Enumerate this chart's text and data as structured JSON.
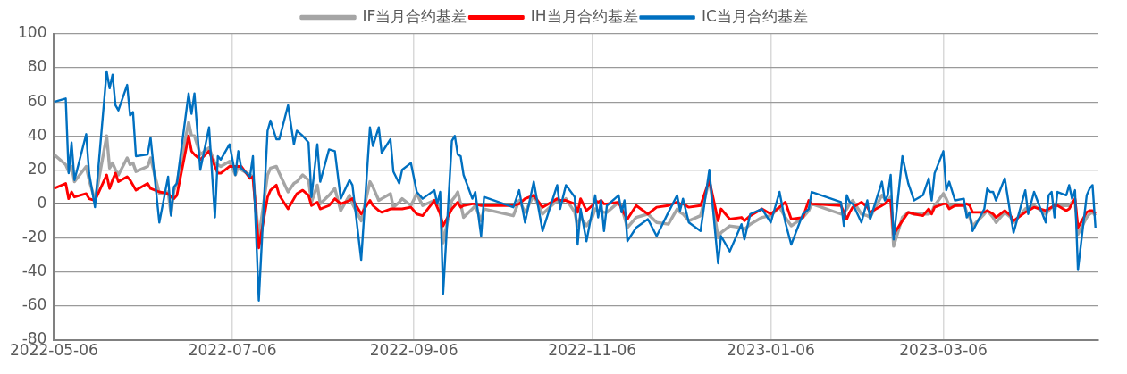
{
  "chart_data": {
    "type": "line",
    "x": [
      "2022-05-06",
      "2022-05-10",
      "2022-05-11",
      "2022-05-12",
      "2022-05-13",
      "2022-05-17",
      "2022-05-18",
      "2022-05-20",
      "2022-05-24",
      "2022-05-25",
      "2022-05-26",
      "2022-05-27",
      "2022-05-28",
      "2022-05-31",
      "2022-06-01",
      "2022-06-02",
      "2022-06-03",
      "2022-06-07",
      "2022-06-08",
      "2022-06-11",
      "2022-06-14",
      "2022-06-15",
      "2022-06-16",
      "2022-06-17",
      "2022-06-21",
      "2022-06-22",
      "2022-06-23",
      "2022-06-25",
      "2022-06-28",
      "2022-06-30",
      "2022-07-01",
      "2022-07-02",
      "2022-07-05",
      "2022-07-07",
      "2022-07-08",
      "2022-07-09",
      "2022-07-12",
      "2022-07-13",
      "2022-07-15",
      "2022-07-18",
      "2022-07-19",
      "2022-07-21",
      "2022-07-22",
      "2022-07-25",
      "2022-07-27",
      "2022-07-28",
      "2022-07-30",
      "2022-08-01",
      "2022-08-02",
      "2022-08-04",
      "2022-08-05",
      "2022-08-08",
      "2022-08-10",
      "2022-08-12",
      "2022-08-15",
      "2022-08-16",
      "2022-08-19",
      "2022-08-22",
      "2022-08-23",
      "2022-08-25",
      "2022-08-26",
      "2022-08-29",
      "2022-08-30",
      "2022-09-01",
      "2022-09-02",
      "2022-09-05",
      "2022-09-07",
      "2022-09-09",
      "2022-09-13",
      "2022-09-14",
      "2022-09-15",
      "2022-09-16",
      "2022-09-19",
      "2022-09-20",
      "2022-09-21",
      "2022-09-22",
      "2022-09-23",
      "2022-09-26",
      "2022-09-27",
      "2022-09-29",
      "2022-09-30",
      "2022-10-10",
      "2022-10-12",
      "2022-10-14",
      "2022-10-17",
      "2022-10-20",
      "2022-10-25",
      "2022-10-26",
      "2022-10-28",
      "2022-10-31",
      "2022-11-01",
      "2022-11-02",
      "2022-11-04",
      "2022-11-06",
      "2022-11-07",
      "2022-11-08",
      "2022-11-09",
      "2022-11-10",
      "2022-11-11",
      "2022-11-15",
      "2022-11-16",
      "2022-11-17",
      "2022-11-18",
      "2022-11-21",
      "2022-11-25",
      "2022-11-28",
      "2022-12-02",
      "2022-12-05",
      "2022-12-06",
      "2022-12-07",
      "2022-12-09",
      "2022-12-13",
      "2022-12-16",
      "2022-12-19",
      "2022-12-20",
      "2022-12-23",
      "2022-12-27",
      "2022-12-28",
      "2022-12-30",
      "2023-01-03",
      "2023-01-06",
      "2023-01-09",
      "2023-01-11",
      "2023-01-13",
      "2023-01-17",
      "2023-01-19",
      "2023-01-20",
      "2023-01-30",
      "2023-01-31",
      "2023-02-01",
      "2023-02-02",
      "2023-02-03",
      "2023-02-06",
      "2023-02-08",
      "2023-02-09",
      "2023-02-13",
      "2023-02-14",
      "2023-02-15",
      "2023-02-16",
      "2023-02-17",
      "2023-02-20",
      "2023-02-22",
      "2023-02-24",
      "2023-02-27",
      "2023-03-01",
      "2023-03-02",
      "2023-03-03",
      "2023-03-06",
      "2023-03-07",
      "2023-03-08",
      "2023-03-10",
      "2023-03-13",
      "2023-03-14",
      "2023-03-15",
      "2023-03-16",
      "2023-03-20",
      "2023-03-21",
      "2023-03-22",
      "2023-03-23",
      "2023-03-24",
      "2023-03-27",
      "2023-03-29",
      "2023-03-30",
      "2023-04-03",
      "2023-04-04",
      "2023-04-06",
      "2023-04-10",
      "2023-04-11",
      "2023-04-12",
      "2023-04-13",
      "2023-04-14",
      "2023-04-17",
      "2023-04-18",
      "2023-04-19",
      "2023-04-20",
      "2023-04-21",
      "2023-04-24",
      "2023-04-25",
      "2023-04-26",
      "2023-04-27"
    ],
    "series": [
      {
        "name": "IF当月合约基差",
        "color": "#a5a5a5",
        "values": [
          29,
          23,
          19,
          22,
          13,
          22,
          14,
          2,
          40,
          21,
          24,
          20,
          17,
          27,
          23,
          24,
          19,
          22,
          27,
          6,
          7,
          -6,
          8,
          12,
          48,
          40,
          40,
          29,
          33,
          24,
          23,
          22,
          25,
          17,
          22,
          20,
          17,
          16,
          -20,
          17,
          21,
          22,
          18,
          7,
          12,
          13,
          17,
          14,
          1,
          11,
          0,
          5,
          9,
          -4,
          5,
          0,
          -10,
          13,
          10,
          2,
          3,
          6,
          -2,
          1,
          3,
          -1,
          6,
          -1,
          2,
          0,
          -1,
          -23,
          2,
          4,
          7,
          0,
          -8,
          -3,
          -1,
          -10,
          -3,
          -7,
          2,
          -5,
          5,
          -6,
          2,
          0,
          3,
          -5,
          -13,
          -8,
          -13,
          -8,
          -3,
          -4,
          -4,
          -5,
          -5,
          1,
          -2,
          -8,
          -14,
          -8,
          -6,
          -11,
          -12,
          -3,
          -5,
          -6,
          -10,
          -7,
          14,
          -20,
          -17,
          -13,
          -14,
          -15,
          -12,
          -8,
          -7,
          -2,
          -8,
          -13,
          -8,
          -4,
          0,
          -6,
          -5,
          -3,
          0,
          2,
          -6,
          -7,
          -8,
          5,
          3,
          2,
          4,
          -25,
          -8,
          -5,
          -6,
          -6,
          -6,
          -5,
          -1,
          6,
          3,
          -1,
          -1,
          0,
          -5,
          -8,
          -13,
          -6,
          -4,
          -6,
          -8,
          -11,
          -5,
          -8,
          -11,
          -3,
          -2,
          -1,
          -6,
          -4,
          -2,
          -1,
          -1,
          -1,
          -1,
          1,
          2,
          -18,
          -8,
          -6,
          -5,
          -7
        ]
      },
      {
        "name": "IH当月合约基差",
        "color": "#ff0000",
        "values": [
          9,
          12,
          3,
          7,
          4,
          6,
          3,
          2,
          17,
          9,
          14,
          18,
          13,
          16,
          14,
          11,
          8,
          12,
          9,
          7,
          6,
          4,
          3,
          5,
          40,
          31,
          29,
          26,
          31,
          22,
          18,
          18,
          22,
          22,
          22,
          22,
          15,
          16,
          -26,
          4,
          8,
          11,
          5,
          -3,
          3,
          6,
          8,
          5,
          -1,
          1,
          -3,
          -1,
          3,
          0,
          2,
          3,
          -6,
          2,
          -1,
          -4,
          -5,
          -3,
          -3,
          -3,
          -3,
          -2,
          -6,
          -7,
          2,
          -2,
          -6,
          -13,
          -3,
          -1,
          1,
          -2,
          -1,
          0,
          0,
          -1,
          -1,
          -1,
          0,
          3,
          5,
          -2,
          3,
          2,
          2,
          0,
          -5,
          3,
          -4,
          -1,
          2,
          1,
          2,
          0,
          0,
          1,
          -3,
          -6,
          -9,
          -1,
          -6,
          -2,
          -1,
          1,
          0,
          0,
          -2,
          -1,
          14,
          -10,
          -3,
          -9,
          -8,
          -10,
          -7,
          -3,
          -6,
          -2,
          1,
          -9,
          -8,
          2,
          0,
          -1,
          -5,
          -9,
          -5,
          -2,
          1,
          -2,
          -5,
          -1,
          0,
          2,
          2,
          -18,
          -10,
          -5,
          -6,
          -7,
          -3,
          -6,
          -2,
          0,
          0,
          -3,
          -1,
          -1,
          0,
          -1,
          -5,
          -5,
          -4,
          -5,
          -6,
          -8,
          -4,
          -7,
          -10,
          -5,
          -4,
          -2,
          -4,
          -3,
          -2,
          -1,
          -1,
          -4,
          -3,
          0,
          3,
          -14,
          -5,
          -4,
          -4,
          -6
        ]
      },
      {
        "name": "IC当月合约基差",
        "color": "#0070c0",
        "values": [
          60,
          62,
          18,
          36,
          14,
          41,
          18,
          -2,
          78,
          68,
          76,
          58,
          55,
          70,
          52,
          54,
          28,
          29,
          39,
          -11,
          16,
          -7,
          10,
          12,
          65,
          53,
          65,
          20,
          45,
          -8,
          28,
          26,
          35,
          17,
          31,
          21,
          16,
          28,
          -57,
          43,
          49,
          38,
          38,
          58,
          35,
          43,
          40,
          36,
          4,
          35,
          13,
          32,
          31,
          3,
          14,
          11,
          -33,
          45,
          34,
          45,
          30,
          38,
          19,
          12,
          20,
          24,
          7,
          3,
          8,
          0,
          7,
          -53,
          37,
          40,
          29,
          28,
          17,
          3,
          7,
          -19,
          4,
          -2,
          8,
          -11,
          13,
          -16,
          11,
          -3,
          11,
          4,
          -24,
          -3,
          -22,
          -4,
          5,
          -8,
          2,
          -16,
          -1,
          5,
          -5,
          2,
          -22,
          -14,
          -9,
          -19,
          -5,
          5,
          -4,
          3,
          -11,
          -16,
          20,
          -35,
          -19,
          -28,
          -12,
          -21,
          -6,
          -3,
          -11,
          7,
          -11,
          -24,
          -6,
          -3,
          7,
          1,
          -13,
          5,
          1,
          0,
          -11,
          2,
          -9,
          13,
          2,
          5,
          17,
          -21,
          28,
          12,
          2,
          5,
          15,
          2,
          18,
          31,
          8,
          13,
          2,
          3,
          -8,
          -5,
          -16,
          -3,
          9,
          7,
          7,
          2,
          15,
          -7,
          -17,
          8,
          -6,
          7,
          -11,
          5,
          7,
          -8,
          7,
          5,
          11,
          3,
          8,
          -39,
          5,
          9,
          11,
          -14
        ]
      }
    ],
    "xlim": [
      "2022-05-06",
      "2023-04-28"
    ],
    "xticks": [
      "2022-05-06",
      "2022-07-06",
      "2022-09-06",
      "2022-11-06",
      "2023-01-06",
      "2023-03-06"
    ],
    "ylim": [
      -80,
      100
    ],
    "yticks": [
      -80,
      -60,
      -40,
      -20,
      0,
      20,
      40,
      60,
      80,
      100
    ],
    "grid": true,
    "legend": "top",
    "marker": "none",
    "line_style": "solid"
  }
}
